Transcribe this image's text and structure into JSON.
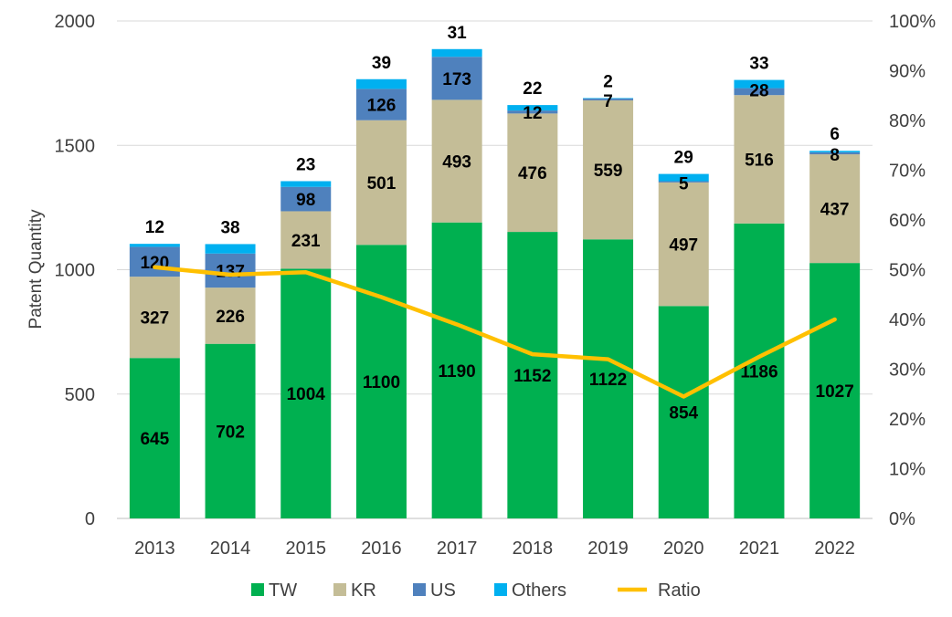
{
  "chart_data": {
    "type": "bar",
    "stacked": true,
    "categories": [
      "2013",
      "2014",
      "2015",
      "2016",
      "2017",
      "2018",
      "2019",
      "2020",
      "2021",
      "2022"
    ],
    "series": [
      {
        "name": "TW",
        "color": "#00b050",
        "values": [
          645,
          702,
          1004,
          1100,
          1190,
          1152,
          1122,
          854,
          1186,
          1027
        ]
      },
      {
        "name": "KR",
        "color": "#c4bd97",
        "values": [
          327,
          226,
          231,
          501,
          493,
          476,
          559,
          497,
          516,
          437
        ]
      },
      {
        "name": "US",
        "color": "#4f81bd",
        "values": [
          120,
          137,
          98,
          126,
          173,
          12,
          7,
          5,
          28,
          8
        ]
      },
      {
        "name": "Others",
        "color": "#00b0f0",
        "values": [
          12,
          38,
          23,
          39,
          31,
          22,
          2,
          29,
          33,
          6
        ]
      }
    ],
    "line_series": {
      "name": "Ratio",
      "color": "#ffc000",
      "axis": "right",
      "values": [
        0.505,
        0.49,
        0.495,
        0.445,
        0.39,
        0.33,
        0.32,
        0.245,
        0.325,
        0.4
      ]
    },
    "ylabel": "Patent Quantity",
    "ylim": [
      0,
      2000
    ],
    "yticks": [
      "0",
      "500",
      "1000",
      "1500",
      "2000"
    ],
    "y2lim": [
      0,
      1
    ],
    "y2ticks": [
      "0%",
      "10%",
      "20%",
      "30%",
      "40%",
      "50%",
      "60%",
      "70%",
      "80%",
      "90%",
      "100%"
    ],
    "legend": [
      "TW",
      "KR",
      "US",
      "Others",
      "Ratio"
    ],
    "legend_position": "bottom"
  }
}
